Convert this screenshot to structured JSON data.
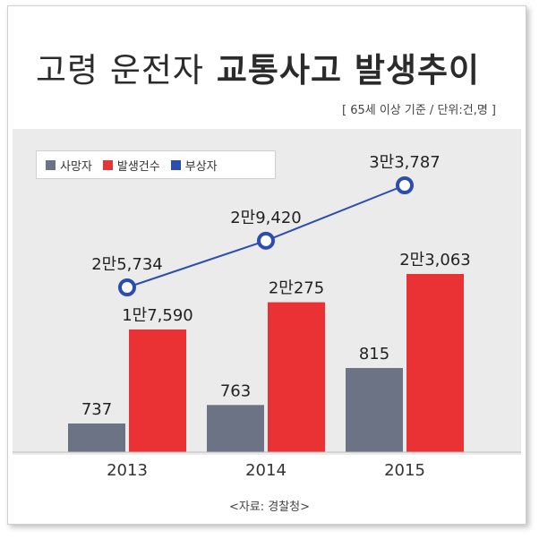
{
  "title": {
    "part1": "고령 운전자",
    "part2": "교통사고 발생추이"
  },
  "subtitle": "[ 65세 이상 기준 / 단위:건,명 ]",
  "source": "<자료: 경찰청>",
  "colors": {
    "deaths": "#6b7385",
    "accidents": "#ea3133",
    "injuries": "#2b4cb0"
  },
  "chart_data": {
    "type": "bar",
    "categories": [
      "2013",
      "2014",
      "2015"
    ],
    "series": [
      {
        "name": "사망자",
        "type": "bar",
        "values": [
          737,
          763,
          815
        ],
        "labels": [
          "737",
          "763",
          "815"
        ]
      },
      {
        "name": "발생건수",
        "type": "bar",
        "values": [
          17590,
          20275,
          23063
        ],
        "labels": [
          "1만7,590",
          "2만275",
          "2만3,063"
        ]
      },
      {
        "name": "부상자",
        "type": "line",
        "values": [
          25734,
          29420,
          33787
        ],
        "labels": [
          "2만5,734",
          "2만9,420",
          "3만3,787"
        ]
      }
    ],
    "legend": [
      "사망자",
      "발생건수",
      "부상자"
    ],
    "legend_position": "top-left",
    "grid": false
  }
}
